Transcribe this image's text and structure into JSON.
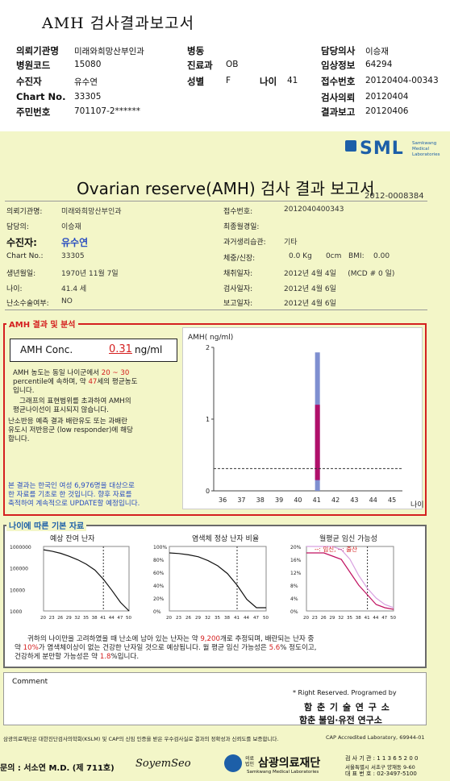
{
  "header": {
    "title": "AMH 검사결과보고서",
    "rows": [
      [
        {
          "k": "의뢰기관명",
          "v": "미래와희망산부인과"
        },
        {
          "k": "병동",
          "v": ""
        },
        {
          "k": "담당의사",
          "v": "이승재"
        }
      ],
      [
        {
          "k": "병원코드",
          "v": "15080"
        },
        {
          "k": "진료과",
          "v": "OB"
        },
        {
          "k": "임상정보",
          "v": "64294"
        }
      ],
      [
        {
          "k": "수진자",
          "v": "유수연"
        },
        {
          "k": "성별",
          "v": "F"
        },
        {
          "k": "접수번호",
          "v": "20120404-00343"
        }
      ],
      [
        {
          "k": "Chart No.",
          "v": "33305"
        },
        {
          "k": "",
          "v": ""
        },
        {
          "k": "검사의뢰",
          "v": "20120404"
        }
      ],
      [
        {
          "k": "주민번호",
          "v": "701107-2******"
        },
        {
          "k": "",
          "v": ""
        },
        {
          "k": "결과보고",
          "v": "20120406"
        }
      ]
    ],
    "age_label": "나이",
    "age_value": "41"
  },
  "sheet": {
    "logo": "SML",
    "logo_sub": [
      "Samkwang",
      "Medical",
      "Laboratories"
    ],
    "title": "Ovarian reserve(AMH) 검사 결과 보고서",
    "doc_no": "2012-0008384",
    "left_fields": [
      {
        "k": "의뢰기관명:",
        "v": "미래와희망산부인과"
      },
      {
        "k": "담당의:",
        "v": "이승재"
      },
      {
        "k": "수진자:",
        "v": "유수연"
      },
      {
        "k": "Chart No.:",
        "v": "33305"
      },
      {
        "k": "생년월일:",
        "v": "1970년 11월 7일"
      },
      {
        "k": "나이:",
        "v": "41.4 세"
      },
      {
        "k": "난소수술여부:",
        "v": "NO"
      }
    ],
    "right_fields": [
      {
        "k": "접수번호:",
        "v": "2012040400343"
      },
      {
        "k": "최종월경일:",
        "v": ""
      },
      {
        "k": "과거생리습관:",
        "v": "기타"
      },
      {
        "k": "체중/신장:",
        "v": "0.0 Kg      0cm   BMI:    0.00"
      },
      {
        "k": "채취일자:",
        "v": "2012년 4월 4일     (MCD # 0 일)"
      },
      {
        "k": "검사일자:",
        "v": "2012년 4월 6일"
      },
      {
        "k": "보고일자:",
        "v": "2012년 4월 6일"
      }
    ]
  },
  "result": {
    "section_title": "AMH 결과 및 분석",
    "conc_label": "AMH Conc.",
    "conc_value": "0.31",
    "conc_unit": "ng/ml",
    "p1a": "AMH 농도는 동일 나이군에서",
    "p1_range": "20 ~ 30",
    "p1b": "percentile에 속하며, 약",
    "p1_age": "47",
    "p1c": "세의 평균농도",
    "p1d": "입니다.",
    "p2a": "그래프의 표현범위를 초과하여 AMH의",
    "p2b": "평균나이선이 표시되지 않습니다.",
    "p3a": "난소반응 예측 결과 배란유도 또는 과배란",
    "p3b": "유도시 저반응군 (low responder)에 해당",
    "p3c": "합니다.",
    "note1": "본 결과는 한국인 여성 6,976명을 대상으로",
    "note2": "한 자료를 기초로 한 것입니다. 향후 자료를",
    "note3": "축적하여 계속적으로 UPDATE할 예정입니다."
  },
  "chart_data": [
    {
      "type": "bar",
      "title": "",
      "ylabel": "AMH( ng/ml)",
      "xlabel": "나이",
      "x": [
        36,
        37,
        38,
        39,
        40,
        41,
        42,
        43,
        44,
        45
      ],
      "ylim": [
        0,
        2
      ],
      "yticks": [
        0,
        1,
        2
      ],
      "marker_age": 41,
      "range_low": 0.0,
      "range_high": 1.93,
      "patient_low": 0.15,
      "patient_high": 1.2,
      "reference_line": 0.31,
      "colors": {
        "range": "#7f8fd0",
        "patient": "#b0106a"
      }
    },
    {
      "type": "line",
      "title": "예상 잔여 난자",
      "x": [
        20,
        23,
        26,
        29,
        32,
        35,
        38,
        41,
        44,
        47,
        50
      ],
      "yticks": [
        "1000000",
        "100000",
        "10000",
        "1000"
      ],
      "y": [
        700000,
        600000,
        480000,
        350000,
        240000,
        150000,
        80000,
        30000,
        9000,
        2500,
        1000
      ],
      "marker_age": 41
    },
    {
      "type": "line",
      "title": "염색체 정상 난자 비율",
      "x": [
        20,
        23,
        26,
        29,
        32,
        35,
        38,
        41,
        44,
        47,
        50
      ],
      "yticks": [
        "100%",
        "80%",
        "60%",
        "40%",
        "20%",
        "0%"
      ],
      "y": [
        90,
        89,
        87,
        84,
        78,
        70,
        58,
        40,
        18,
        5,
        5
      ],
      "marker_age": 41
    },
    {
      "type": "line",
      "title": "월평균 임신 가능성",
      "legend": [
        "임신",
        "출산"
      ],
      "x": [
        20,
        23,
        26,
        29,
        32,
        35,
        38,
        41,
        44,
        47,
        50
      ],
      "yticks": [
        "20%",
        "16%",
        "12%",
        "8%",
        "4%",
        "0%"
      ],
      "series": [
        {
          "name": "임신",
          "values": [
            20,
            20,
            20,
            20,
            19,
            16,
            11,
            7,
            4,
            2,
            1
          ]
        },
        {
          "name": "출산",
          "values": [
            18,
            18,
            18,
            17,
            16,
            12,
            8,
            5,
            2,
            1,
            0.5
          ]
        }
      ],
      "marker_age": 41
    }
  ],
  "basic": {
    "section_title": "나이에 따른 기본 자료",
    "s1": "귀하의 나이만을 고려하였을 때 난소에 남아 있는 난자는 약",
    "s1_val": "9,200",
    "s1b": "개로 추정되며, 배란되는 난자 중",
    "s2": "약",
    "s2_val": "10%",
    "s2b": "가 염색체이상이 없는 건강한 난자일 것으로 예상됩니다. 월 평균 임신 가능성은",
    "s2_val2": "5.6",
    "s2c": "% 정도이고,",
    "s3": "건강하게 분만할 가능성은 약",
    "s3_val": "1.8",
    "s3b": "%입니다."
  },
  "comment": {
    "label": "Comment",
    "rights": "* Right Reserved.  Programed by",
    "org1": "함 춘 기 술 연 구 소",
    "org2": "함춘 불임·유전 연구소"
  },
  "footer": {
    "cert": "삼광의료재단은 대한진단검사의학회(KSLM) 및 CAP의 신임 인증을 받은 우수검사실로 결과의 정확성과 신뢰도를 보증합니다.",
    "cap": "CAP  Accredited  Laboratory,  69944-01",
    "doctor": "문의 : 서소연 M.D. (제 711호)",
    "signature": "SoyemSeo",
    "org_prefix": "의료\n법인",
    "org_name": "삼광의료재단",
    "org_eng": "Samkwang Medical Laboratories",
    "contact1": "검 사 기 관 : 1 1 3 6 5 2 0 0",
    "contact2": "서울특별시 서초구 양재동 9-60",
    "contact3": "대 표 번 호 : 02-3497-5100"
  }
}
